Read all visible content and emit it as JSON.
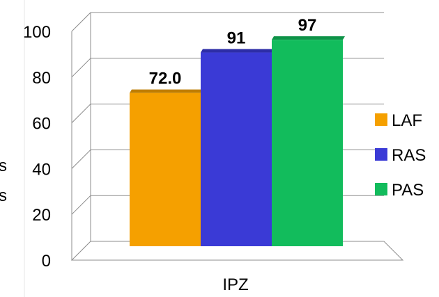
{
  "chart_data": {
    "type": "bar",
    "categories": [
      "IPZ"
    ],
    "series": [
      {
        "name": "LAF",
        "values": [
          72.0
        ],
        "label": "72.0",
        "color": "#F5A000"
      },
      {
        "name": "RAS",
        "values": [
          91
        ],
        "label": "91",
        "color": "#3A3AD6"
      },
      {
        "name": "PAS",
        "values": [
          97
        ],
        "label": "97",
        "color": "#12BC5C"
      }
    ],
    "yticks": [
      "0",
      "20",
      "40",
      "60",
      "80",
      "100"
    ],
    "ylim": [
      0,
      100
    ],
    "legend_position": "right",
    "grid": true,
    "style": "3d",
    "partial_axis_label_glyphs": [
      "s",
      "s"
    ]
  }
}
